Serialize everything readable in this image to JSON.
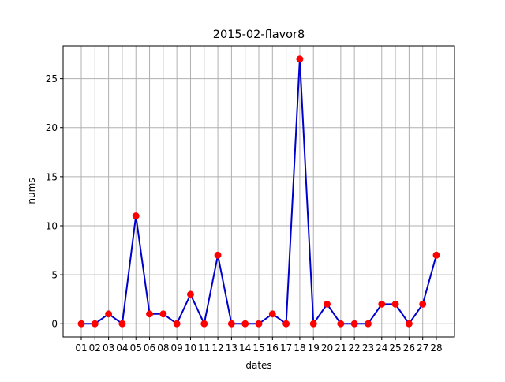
{
  "chart_data": {
    "type": "line",
    "title": "2015-02-flavor8",
    "xlabel": "dates",
    "ylabel": "nums",
    "categories": [
      "01",
      "02",
      "03",
      "04",
      "05",
      "06",
      "08",
      "09",
      "10",
      "11",
      "12",
      "13",
      "14",
      "15",
      "16",
      "17",
      "18",
      "19",
      "20",
      "21",
      "22",
      "23",
      "24",
      "25",
      "26",
      "27",
      "28"
    ],
    "values": [
      0,
      0,
      1,
      0,
      11,
      1,
      1,
      0,
      3,
      0,
      7,
      0,
      0,
      0,
      1,
      0,
      27,
      0,
      2,
      0,
      0,
      0,
      2,
      2,
      0,
      2,
      7
    ],
    "ylim": [
      -1.35,
      28.35
    ],
    "yticks": [
      0,
      5,
      10,
      15,
      20,
      25
    ],
    "grid": true,
    "line_color": "#0000cd",
    "marker_color": "#ff0000",
    "grid_color": "#b0b0b0"
  }
}
